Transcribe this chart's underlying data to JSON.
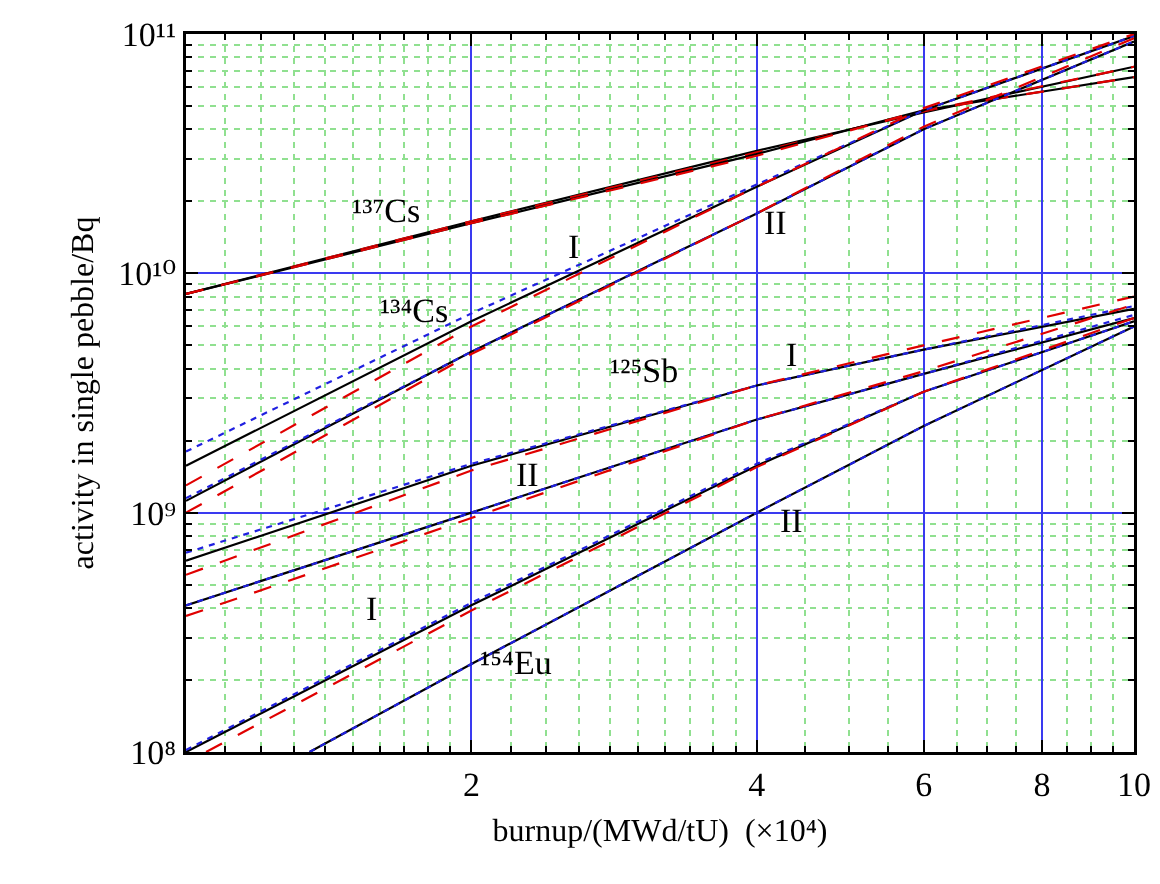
{
  "chart_data": {
    "type": "line",
    "xlabel": "burnup/(MWd/tU)  (×10⁴)",
    "ylabel": "activity in single pebble/Bq",
    "log": "xy",
    "grid": true,
    "xlim": [
      1,
      10
    ],
    "xticks": [
      {
        "value": 1,
        "label": null
      },
      {
        "value": 1.1,
        "label": null
      },
      {
        "value": 1.2,
        "label": null
      },
      {
        "value": 1.3,
        "label": null
      },
      {
        "value": 1.4,
        "label": null
      },
      {
        "value": 1.5,
        "label": null
      },
      {
        "value": 1.6,
        "label": null
      },
      {
        "value": 1.7,
        "label": null
      },
      {
        "value": 1.8,
        "label": null
      },
      {
        "value": 1.9,
        "label": null
      },
      2,
      {
        "value": 2.2,
        "label": null
      },
      {
        "value": 2.4,
        "label": null
      },
      {
        "value": 2.6,
        "label": null
      },
      {
        "value": 2.8,
        "label": null
      },
      {
        "value": 3,
        "label": null
      },
      {
        "value": 3.2,
        "label": null
      },
      {
        "value": 3.4,
        "label": null
      },
      {
        "value": 3.6,
        "label": null
      },
      {
        "value": 3.8,
        "label": null
      },
      4,
      {
        "value": 4.5,
        "label": null
      },
      {
        "value": 5,
        "label": null
      },
      {
        "value": 5.5,
        "label": null
      },
      6,
      {
        "value": 6.5,
        "label": null
      },
      {
        "value": 7,
        "label": null
      },
      {
        "value": 7.5,
        "label": null
      },
      8,
      {
        "value": 8.5,
        "label": null
      },
      {
        "value": 9,
        "label": null
      },
      {
        "value": 9.5,
        "label": null
      },
      10
    ],
    "ylim": [
      100000000.0,
      100000000000.0
    ],
    "yticks": [
      {
        "value": 100000000.0,
        "label": "10⁸"
      },
      {
        "value": 200000000.0,
        "label": null
      },
      {
        "value": 300000000.0,
        "label": null
      },
      {
        "value": 400000000.0,
        "label": null
      },
      {
        "value": 500000000.0,
        "label": null
      },
      {
        "value": 600000000.0,
        "label": null
      },
      {
        "value": 700000000.0,
        "label": null
      },
      {
        "value": 800000000.0,
        "label": null
      },
      {
        "value": 900000000.0,
        "label": null
      },
      {
        "value": 1000000000.0,
        "label": "10⁹"
      },
      {
        "value": 2000000000.0,
        "label": null
      },
      {
        "value": 3000000000.0,
        "label": null
      },
      {
        "value": 4000000000.0,
        "label": null
      },
      {
        "value": 5000000000.0,
        "label": null
      },
      {
        "value": 6000000000.0,
        "label": null
      },
      {
        "value": 7000000000.0,
        "label": null
      },
      {
        "value": 8000000000.0,
        "label": null
      },
      {
        "value": 9000000000.0,
        "label": null
      },
      {
        "value": 10000000000.0,
        "label": "10¹⁰"
      },
      {
        "value": 20000000000.0,
        "label": null
      },
      {
        "value": 30000000000.0,
        "label": null
      },
      {
        "value": 40000000000.0,
        "label": null
      },
      {
        "value": 50000000000.0,
        "label": null
      },
      {
        "value": 60000000000.0,
        "label": null
      },
      {
        "value": 70000000000.0,
        "label": null
      },
      {
        "value": 80000000000.0,
        "label": null
      },
      {
        "value": 90000000000.0,
        "label": null
      },
      {
        "value": 100000000000.0,
        "label": "10¹¹"
      }
    ],
    "series": [
      {
        "color": "#000000",
        "line_style": "solid",
        "x": [
          1,
          2,
          4,
          6,
          10
        ],
        "values": [
          8200000000.0,
          16500000000.0,
          32500000000.0,
          47000000000.0,
          73000000000.0
        ]
      },
      {
        "color": "#e00000",
        "line_style": "dashed",
        "x": [
          1,
          2,
          4,
          6,
          10
        ],
        "values": [
          8200000000.0,
          16500000000.0,
          32000000000.0,
          47500000000.0,
          73000000000.0
        ]
      },
      {
        "color": "#000000",
        "line_style": "solid",
        "x": [
          1,
          2,
          4,
          6,
          10
        ],
        "values": [
          8200000000.0,
          16200000000.0,
          31500000000.0,
          48000000000.0,
          66000000000.0
        ]
      },
      {
        "color": "#e00000",
        "line_style": "dashed",
        "x": [
          1,
          2,
          4,
          6,
          10
        ],
        "values": [
          8200000000.0,
          16200000000.0,
          31000000000.0,
          48000000000.0,
          66000000000.0
        ]
      },
      {
        "color": "#000000",
        "line_style": "solid",
        "x": [
          1,
          2,
          4,
          6,
          10
        ],
        "values": [
          1570000000.0,
          6300000000.0,
          23000000000.0,
          48000000000.0,
          98000000000.0
        ]
      },
      {
        "color": "#2020e0",
        "line_style": "dotted",
        "x": [
          1,
          2,
          4,
          6,
          10
        ],
        "values": [
          1800000000.0,
          6800000000.0,
          23500000000.0,
          48000000000.0,
          98000000000.0
        ]
      },
      {
        "color": "#e00000",
        "line_style": "dashed",
        "x": [
          1,
          2,
          4,
          6,
          10
        ],
        "values": [
          1300000000.0,
          6000000000.0,
          23000000000.0,
          49000000000.0,
          100000000000.0
        ]
      },
      {
        "color": "#000000",
        "line_style": "solid",
        "x": [
          1,
          2,
          4,
          6,
          10
        ],
        "values": [
          1120000000.0,
          4700000000.0,
          17800000000.0,
          40000000000.0,
          93000000000.0
        ]
      },
      {
        "color": "#2020e0",
        "line_style": "dotted",
        "x": [
          1,
          2,
          4,
          6,
          10
        ],
        "values": [
          1150000000.0,
          4700000000.0,
          17800000000.0,
          40000000000.0,
          93000000000.0
        ]
      },
      {
        "color": "#e00000",
        "line_style": "dashed",
        "x": [
          1,
          2,
          4,
          6,
          10
        ],
        "values": [
          1000000000.0,
          4600000000.0,
          17800000000.0,
          41000000000.0,
          96000000000.0
        ]
      },
      {
        "color": "#000000",
        "line_style": "solid",
        "x": [
          1,
          2,
          4,
          6,
          10
        ],
        "values": [
          630000000.0,
          1570000000.0,
          3400000000.0,
          4800000000.0,
          7100000000.0
        ]
      },
      {
        "color": "#2020e0",
        "line_style": "dotted",
        "x": [
          1,
          2,
          4,
          6,
          10
        ],
        "values": [
          680000000.0,
          1600000000.0,
          3400000000.0,
          4800000000.0,
          7300000000.0
        ]
      },
      {
        "color": "#e00000",
        "line_style": "dashed",
        "x": [
          1,
          2,
          4,
          6,
          10
        ],
        "values": [
          550000000.0,
          1500000000.0,
          3400000000.0,
          5000000000.0,
          8000000000.0
        ]
      },
      {
        "color": "#000000",
        "line_style": "solid",
        "x": [
          1,
          2,
          4,
          6,
          10
        ],
        "values": [
          410000000.0,
          1000000000.0,
          2450000000.0,
          3800000000.0,
          6500000000.0
        ]
      },
      {
        "color": "#2020e0",
        "line_style": "dotted",
        "x": [
          1,
          2,
          4,
          6,
          10
        ],
        "values": [
          410000000.0,
          1000000000.0,
          2450000000.0,
          3800000000.0,
          6700000000.0
        ]
      },
      {
        "color": "#e00000",
        "line_style": "dashed",
        "x": [
          1,
          2,
          4,
          6,
          10
        ],
        "values": [
          370000000.0,
          950000000.0,
          2450000000.0,
          3900000000.0,
          7400000000.0
        ]
      },
      {
        "color": "#000000",
        "line_style": "solid",
        "x": [
          1,
          2,
          4,
          6,
          10
        ],
        "values": [
          100000000.0,
          410000000.0,
          1570000000.0,
          3200000000.0,
          6300000000.0
        ]
      },
      {
        "color": "#2020e0",
        "line_style": "dotted",
        "x": [
          1,
          2,
          4,
          6,
          10
        ],
        "values": [
          102000000.0,
          420000000.0,
          1600000000.0,
          3200000000.0,
          6300000000.0
        ]
      },
      {
        "color": "#e00000",
        "line_style": "dashed",
        "x": [
          1.05,
          2,
          4,
          6,
          10
        ],
        "values": [
          100000000.0,
          390000000.0,
          1550000000.0,
          3200000000.0,
          6500000000.0
        ]
      },
      {
        "color": "#000000",
        "line_style": "solid",
        "x": [
          1.35,
          2,
          4,
          6,
          10
        ],
        "values": [
          100000000.0,
          233000000.0,
          1000000000.0,
          2300000000.0,
          6000000000.0
        ]
      },
      {
        "color": "#2020e0",
        "line_style": "dotted",
        "x": [
          1.35,
          2,
          4,
          6,
          10
        ],
        "values": [
          100000000.0,
          233000000.0,
          1000000000.0,
          2300000000.0,
          6000000000.0
        ]
      }
    ],
    "annotations": [
      "¹³⁷Cs",
      "¹³⁴Cs",
      "I",
      "II",
      "¹²⁵Sb",
      "I",
      "II",
      "II",
      "I",
      "¹⁵⁴Eu"
    ]
  }
}
